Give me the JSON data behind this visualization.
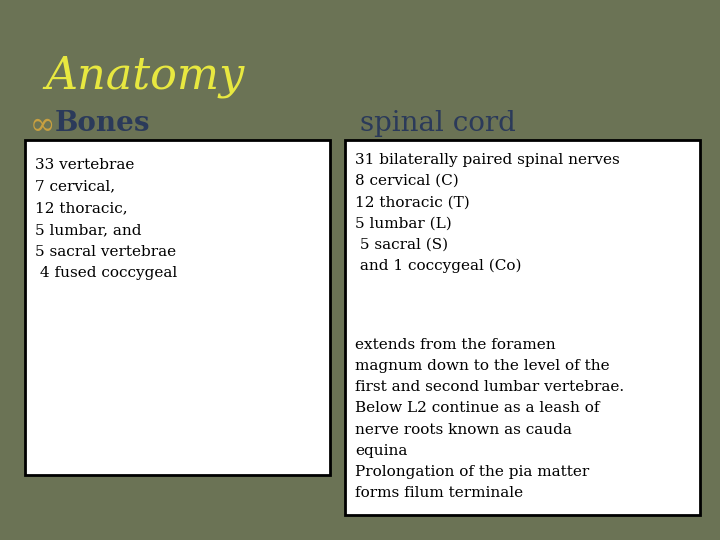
{
  "title": "Anatomy",
  "title_color": "#e8e840",
  "title_fontsize": 32,
  "background_color": "#6b7355",
  "subtitle_left_bullet": "∞",
  "subtitle_left_text": "Bones",
  "subtitle_right": "spinal cord",
  "subtitle_color": "#2b3a5a",
  "subtitle_bullet_color": "#c8a040",
  "subtitle_fontsize": 20,
  "left_box_text": "33 vertebrae\n7 cervical,\n12 thoracic,\n5 lumbar, and\n5 sacral vertebrae\n 4 fused coccygeal",
  "right_box_text_1": "31 bilaterally paired spinal nerves\n8 cervical (C)\n12 thoracic (T)\n5 lumbar (L)\n 5 sacral (S)\n and 1 coccygeal (Co)",
  "right_box_text_2": "extends from the foramen\nmagnum down to the level of the\nfirst and second lumbar vertebrae.\nBelow L2 continue as a leash of\nnerve roots known as cauda\nequina\nProlongation of the pia matter\nforms filum terminale",
  "box_bg": "#ffffff",
  "box_edge": "#000000",
  "text_fontsize": 11,
  "text_color": "#000000"
}
